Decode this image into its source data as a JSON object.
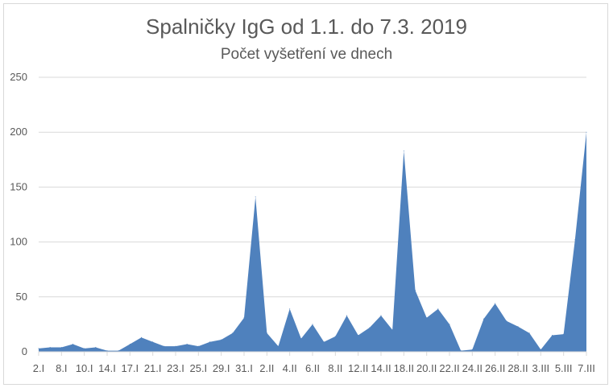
{
  "chart_data": {
    "type": "area",
    "title": "Spalničky IgG od 1.1. do 7.3. 2019",
    "subtitle": "Počet vyšetření ve dnech",
    "xlabel": "",
    "ylabel": "",
    "ylim": [
      0,
      250
    ],
    "yticks": [
      "0",
      "50",
      "100",
      "150",
      "200",
      "250"
    ],
    "grid": true,
    "legend": "none",
    "color": "#4F81BD",
    "x_tick_labels": [
      "2.I",
      "8.I",
      "10.I",
      "14.I",
      "17.I",
      "21.I",
      "23.I",
      "25.I",
      "29.I",
      "31.I",
      "2.II",
      "4.II",
      "6.II",
      "8.II",
      "12.II",
      "14.II",
      "18.II",
      "20.II",
      "22.II",
      "24.II",
      "26.II",
      "28.II",
      "3.III",
      "5.III",
      "7.III"
    ],
    "values": [
      3,
      4,
      4,
      7,
      3,
      4,
      1,
      1,
      7,
      13,
      9,
      5,
      5,
      7,
      5,
      9,
      11,
      17,
      31,
      141,
      17,
      5,
      39,
      12,
      25,
      9,
      14,
      33,
      15,
      22,
      33,
      20,
      183,
      56,
      31,
      39,
      25,
      1,
      2,
      30,
      44,
      28,
      23,
      17,
      2,
      15,
      16,
      102,
      200
    ]
  }
}
